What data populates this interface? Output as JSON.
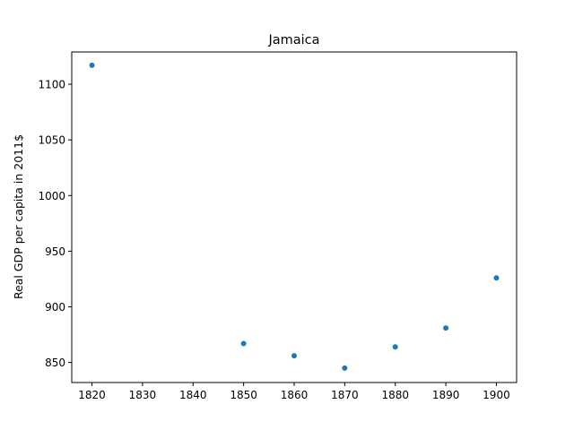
{
  "chart_data": {
    "type": "scatter",
    "title": "Jamaica",
    "xlabel": "",
    "ylabel": "Real GDP per capita in 2011$",
    "xlim": [
      1816,
      1904
    ],
    "ylim": [
      832,
      1129
    ],
    "x_ticks": [
      1820,
      1830,
      1840,
      1850,
      1860,
      1870,
      1880,
      1890,
      1900
    ],
    "y_ticks": [
      850,
      900,
      950,
      1000,
      1050,
      1100
    ],
    "grid": false,
    "marker_color": "#1f77b4",
    "series": [
      {
        "points": [
          {
            "x": 1820,
            "y": 1117
          },
          {
            "x": 1850,
            "y": 867
          },
          {
            "x": 1860,
            "y": 856
          },
          {
            "x": 1870,
            "y": 845
          },
          {
            "x": 1880,
            "y": 864
          },
          {
            "x": 1890,
            "y": 881
          },
          {
            "x": 1900,
            "y": 926
          }
        ]
      }
    ]
  }
}
